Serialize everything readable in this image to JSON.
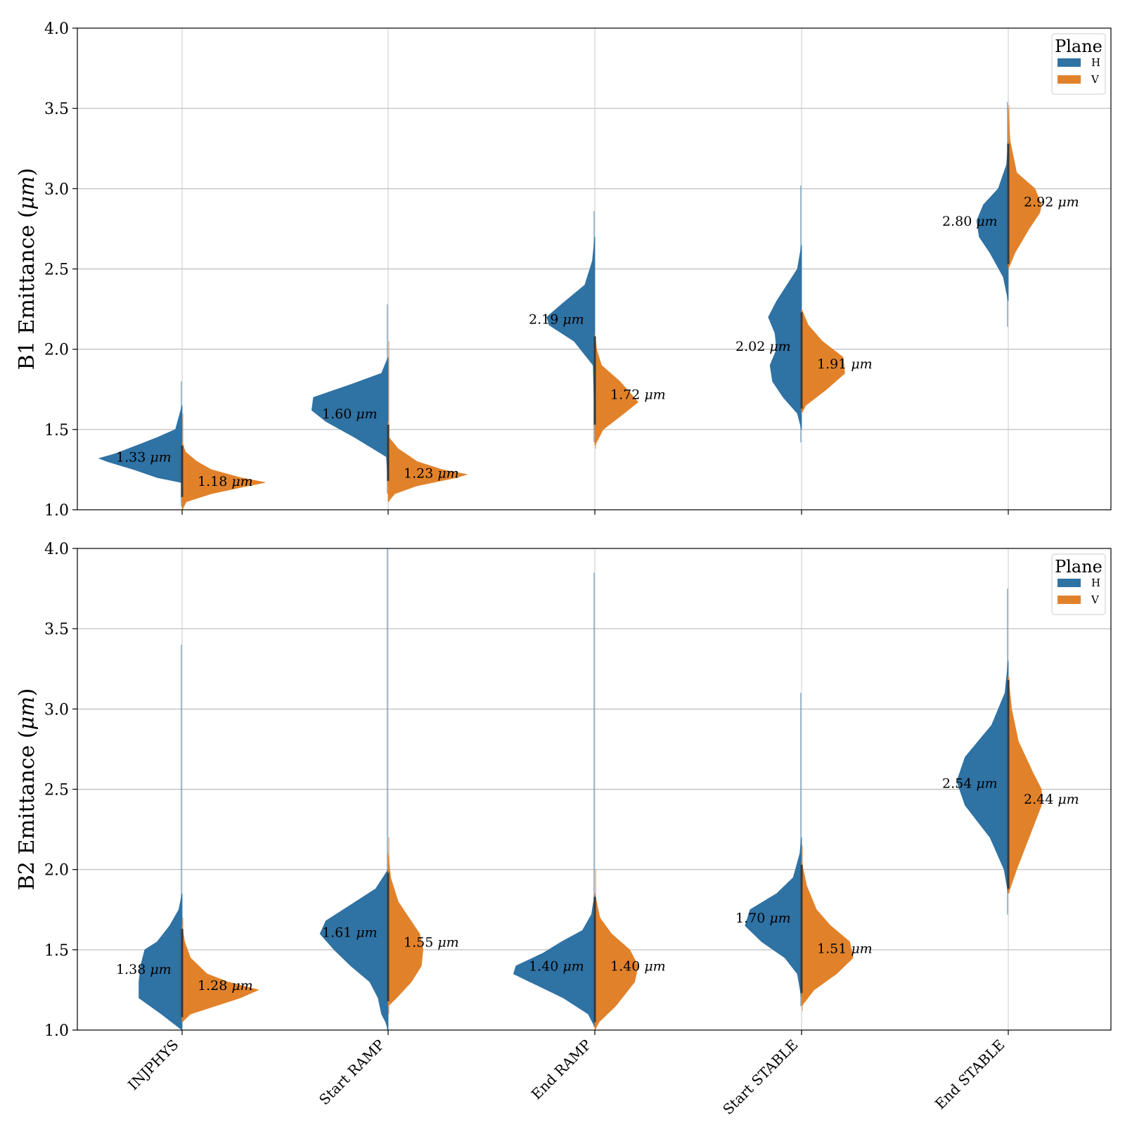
{
  "chart_data": [
    {
      "type": "violin",
      "ylabel": "B1 Emittance (μm)",
      "ylabel_parts": [
        "B1 Emittance (",
        "μm",
        ")"
      ],
      "ylim": [
        1.0,
        4.0
      ],
      "yticks": [
        "1.0",
        "1.5",
        "2.0",
        "2.5",
        "3.0",
        "3.5",
        "4.0"
      ],
      "grid": true,
      "legend": {
        "title": "Plane",
        "placement": "top-right",
        "entries": [
          {
            "label": "H",
            "color": "#2f72a4"
          },
          {
            "label": "V",
            "color": "#e1822b"
          }
        ]
      },
      "categories": [
        "INJPHYS",
        "Start RAMP",
        "End RAMP",
        "Start STABLE",
        "End STABLE"
      ],
      "show_category_labels": false,
      "series": [
        {
          "name": "H",
          "color": "#2f72a4",
          "medians": [
            1.33,
            1.6,
            2.19,
            2.02,
            2.8
          ],
          "median_labels": [
            "1.33",
            "1.60",
            "2.19",
            "2.02",
            "2.80"
          ],
          "extent": [
            [
              1.02,
              1.8
            ],
            [
              1.1,
              2.28
            ],
            [
              1.42,
              2.86
            ],
            [
              1.42,
              3.02
            ],
            [
              2.14,
              3.54
            ]
          ],
          "profiles": [
            [
              [
                1.05,
                0.0
              ],
              [
                1.17,
                0.01
              ],
              [
                1.2,
                0.3
              ],
              [
                1.25,
                0.58
              ],
              [
                1.3,
                0.9
              ],
              [
                1.32,
                1.0
              ],
              [
                1.35,
                0.8
              ],
              [
                1.4,
                0.55
              ],
              [
                1.45,
                0.3
              ],
              [
                1.5,
                0.08
              ],
              [
                1.65,
                0.0
              ]
            ],
            [
              [
                1.15,
                0.0
              ],
              [
                1.33,
                0.02
              ],
              [
                1.45,
                0.4
              ],
              [
                1.55,
                0.75
              ],
              [
                1.62,
                0.92
              ],
              [
                1.7,
                0.9
              ],
              [
                1.78,
                0.45
              ],
              [
                1.85,
                0.08
              ],
              [
                1.95,
                0.0
              ]
            ],
            [
              [
                1.5,
                0.0
              ],
              [
                1.9,
                0.02
              ],
              [
                2.05,
                0.25
              ],
              [
                2.15,
                0.55
              ],
              [
                2.2,
                0.58
              ],
              [
                2.28,
                0.4
              ],
              [
                2.4,
                0.12
              ],
              [
                2.55,
                0.03
              ],
              [
                2.7,
                0.0
              ]
            ],
            [
              [
                1.5,
                0.0
              ],
              [
                1.6,
                0.05
              ],
              [
                1.7,
                0.22
              ],
              [
                1.8,
                0.35
              ],
              [
                1.9,
                0.38
              ],
              [
                2.0,
                0.3
              ],
              [
                2.1,
                0.32
              ],
              [
                2.2,
                0.4
              ],
              [
                2.3,
                0.3
              ],
              [
                2.5,
                0.05
              ],
              [
                2.65,
                0.0
              ]
            ],
            [
              [
                2.3,
                0.0
              ],
              [
                2.45,
                0.06
              ],
              [
                2.6,
                0.22
              ],
              [
                2.7,
                0.35
              ],
              [
                2.8,
                0.38
              ],
              [
                2.9,
                0.3
              ],
              [
                3.0,
                0.12
              ],
              [
                3.15,
                0.02
              ],
              [
                3.3,
                0.0
              ]
            ]
          ]
        },
        {
          "name": "V",
          "color": "#e1822b",
          "medians": [
            1.18,
            1.23,
            1.72,
            1.91,
            2.92
          ],
          "median_labels": [
            "1.18",
            "1.23",
            "1.72",
            "1.91",
            "2.92"
          ],
          "extent": [
            [
              1.0,
              1.6
            ],
            [
              1.05,
              2.05
            ],
            [
              1.38,
              2.05
            ],
            [
              1.62,
              2.22
            ],
            [
              2.52,
              3.52
            ]
          ],
          "profiles": [
            [
              [
                1.0,
                0.0
              ],
              [
                1.05,
                0.05
              ],
              [
                1.1,
                0.35
              ],
              [
                1.15,
                0.8
              ],
              [
                1.17,
                1.0
              ],
              [
                1.2,
                0.7
              ],
              [
                1.25,
                0.35
              ],
              [
                1.3,
                0.18
              ],
              [
                1.36,
                0.04
              ],
              [
                1.42,
                0.0
              ]
            ],
            [
              [
                1.05,
                0.0
              ],
              [
                1.1,
                0.08
              ],
              [
                1.15,
                0.35
              ],
              [
                1.2,
                0.82
              ],
              [
                1.22,
                0.95
              ],
              [
                1.25,
                0.65
              ],
              [
                1.3,
                0.35
              ],
              [
                1.38,
                0.12
              ],
              [
                1.45,
                0.01
              ],
              [
                1.55,
                0.0
              ]
            ],
            [
              [
                1.4,
                0.0
              ],
              [
                1.5,
                0.1
              ],
              [
                1.6,
                0.35
              ],
              [
                1.67,
                0.52
              ],
              [
                1.73,
                0.42
              ],
              [
                1.8,
                0.3
              ],
              [
                1.9,
                0.08
              ],
              [
                2.0,
                0.02
              ],
              [
                2.1,
                0.0
              ]
            ],
            [
              [
                1.6,
                0.0
              ],
              [
                1.65,
                0.05
              ],
              [
                1.75,
                0.3
              ],
              [
                1.85,
                0.52
              ],
              [
                1.95,
                0.5
              ],
              [
                2.05,
                0.25
              ],
              [
                2.15,
                0.08
              ],
              [
                2.25,
                0.0
              ]
            ],
            [
              [
                2.5,
                0.0
              ],
              [
                2.6,
                0.08
              ],
              [
                2.75,
                0.25
              ],
              [
                2.85,
                0.38
              ],
              [
                2.9,
                0.4
              ],
              [
                3.0,
                0.32
              ],
              [
                3.1,
                0.1
              ],
              [
                3.3,
                0.02
              ],
              [
                3.5,
                0.0
              ]
            ]
          ]
        }
      ]
    },
    {
      "type": "violin",
      "ylabel": "B2 Emittance (μm)",
      "ylabel_parts": [
        "B2 Emittance (",
        "μm",
        ")"
      ],
      "ylim": [
        1.0,
        4.0
      ],
      "yticks": [
        "1.0",
        "1.5",
        "2.0",
        "2.5",
        "3.0",
        "3.5",
        "4.0"
      ],
      "grid": true,
      "legend": {
        "title": "Plane",
        "placement": "top-right",
        "entries": [
          {
            "label": "H",
            "color": "#2f72a4"
          },
          {
            "label": "V",
            "color": "#e1822b"
          }
        ]
      },
      "categories": [
        "INJPHYS",
        "Start RAMP",
        "End RAMP",
        "Start STABLE",
        "End STABLE"
      ],
      "show_category_labels": true,
      "series": [
        {
          "name": "H",
          "color": "#2f72a4",
          "medians": [
            1.38,
            1.61,
            1.4,
            1.7,
            2.54
          ],
          "median_labels": [
            "1.38",
            "1.61",
            "1.40",
            "1.70",
            "2.54"
          ],
          "extent": [
            [
              1.0,
              3.4
            ],
            [
              1.0,
              4.0
            ],
            [
              1.02,
              3.85
            ],
            [
              1.15,
              3.1
            ],
            [
              1.72,
              3.75
            ]
          ],
          "profiles": [
            [
              [
                1.0,
                0.0
              ],
              [
                1.1,
                0.25
              ],
              [
                1.2,
                0.52
              ],
              [
                1.3,
                0.52
              ],
              [
                1.4,
                0.5
              ],
              [
                1.5,
                0.45
              ],
              [
                1.55,
                0.3
              ],
              [
                1.65,
                0.15
              ],
              [
                1.75,
                0.04
              ],
              [
                1.85,
                0.0
              ]
            ],
            [
              [
                1.0,
                0.0
              ],
              [
                1.05,
                0.03
              ],
              [
                1.1,
                0.08
              ],
              [
                1.2,
                0.12
              ],
              [
                1.3,
                0.22
              ],
              [
                1.4,
                0.45
              ],
              [
                1.5,
                0.65
              ],
              [
                1.6,
                0.82
              ],
              [
                1.68,
                0.75
              ],
              [
                1.78,
                0.45
              ],
              [
                1.88,
                0.15
              ],
              [
                2.0,
                0.0
              ]
            ],
            [
              [
                1.02,
                0.0
              ],
              [
                1.1,
                0.08
              ],
              [
                1.2,
                0.38
              ],
              [
                1.3,
                0.78
              ],
              [
                1.35,
                0.98
              ],
              [
                1.4,
                0.95
              ],
              [
                1.48,
                0.62
              ],
              [
                1.55,
                0.4
              ],
              [
                1.62,
                0.15
              ],
              [
                1.72,
                0.04
              ],
              [
                1.85,
                0.0
              ]
            ],
            [
              [
                1.2,
                0.0
              ],
              [
                1.35,
                0.05
              ],
              [
                1.45,
                0.2
              ],
              [
                1.55,
                0.48
              ],
              [
                1.65,
                0.68
              ],
              [
                1.75,
                0.62
              ],
              [
                1.85,
                0.3
              ],
              [
                1.95,
                0.1
              ],
              [
                2.1,
                0.02
              ],
              [
                2.2,
                0.0
              ]
            ],
            [
              [
                1.85,
                0.0
              ],
              [
                2.0,
                0.05
              ],
              [
                2.2,
                0.22
              ],
              [
                2.4,
                0.52
              ],
              [
                2.55,
                0.62
              ],
              [
                2.7,
                0.52
              ],
              [
                2.9,
                0.2
              ],
              [
                3.1,
                0.04
              ],
              [
                3.3,
                0.0
              ]
            ]
          ]
        },
        {
          "name": "V",
          "color": "#e1822b",
          "medians": [
            1.28,
            1.55,
            1.4,
            1.51,
            2.44
          ],
          "median_labels": [
            "1.28",
            "1.55",
            "1.40",
            "1.51",
            "2.44"
          ],
          "extent": [
            [
              1.05,
              1.7
            ],
            [
              1.1,
              2.2
            ],
            [
              1.0,
              2.0
            ],
            [
              1.12,
              2.15
            ],
            [
              1.85,
              3.2
            ]
          ],
          "profiles": [
            [
              [
                1.05,
                0.0
              ],
              [
                1.1,
                0.1
              ],
              [
                1.15,
                0.4
              ],
              [
                1.2,
                0.7
              ],
              [
                1.25,
                0.92
              ],
              [
                1.3,
                0.55
              ],
              [
                1.35,
                0.3
              ],
              [
                1.45,
                0.1
              ],
              [
                1.55,
                0.03
              ],
              [
                1.65,
                0.0
              ]
            ],
            [
              [
                1.15,
                0.0
              ],
              [
                1.2,
                0.1
              ],
              [
                1.3,
                0.28
              ],
              [
                1.4,
                0.4
              ],
              [
                1.5,
                0.42
              ],
              [
                1.6,
                0.38
              ],
              [
                1.7,
                0.25
              ],
              [
                1.8,
                0.12
              ],
              [
                1.95,
                0.03
              ],
              [
                2.1,
                0.0
              ]
            ],
            [
              [
                1.0,
                0.0
              ],
              [
                1.05,
                0.05
              ],
              [
                1.15,
                0.25
              ],
              [
                1.3,
                0.48
              ],
              [
                1.4,
                0.52
              ],
              [
                1.5,
                0.42
              ],
              [
                1.6,
                0.2
              ],
              [
                1.7,
                0.06
              ],
              [
                1.85,
                0.0
              ]
            ],
            [
              [
                1.15,
                0.0
              ],
              [
                1.25,
                0.15
              ],
              [
                1.35,
                0.42
              ],
              [
                1.45,
                0.62
              ],
              [
                1.55,
                0.58
              ],
              [
                1.65,
                0.35
              ],
              [
                1.75,
                0.18
              ],
              [
                1.9,
                0.06
              ],
              [
                2.05,
                0.0
              ]
            ],
            [
              [
                1.85,
                0.0
              ],
              [
                2.0,
                0.1
              ],
              [
                2.2,
                0.25
              ],
              [
                2.4,
                0.4
              ],
              [
                2.5,
                0.4
              ],
              [
                2.6,
                0.3
              ],
              [
                2.8,
                0.12
              ],
              [
                3.0,
                0.04
              ],
              [
                3.2,
                0.0
              ]
            ]
          ]
        }
      ]
    }
  ]
}
